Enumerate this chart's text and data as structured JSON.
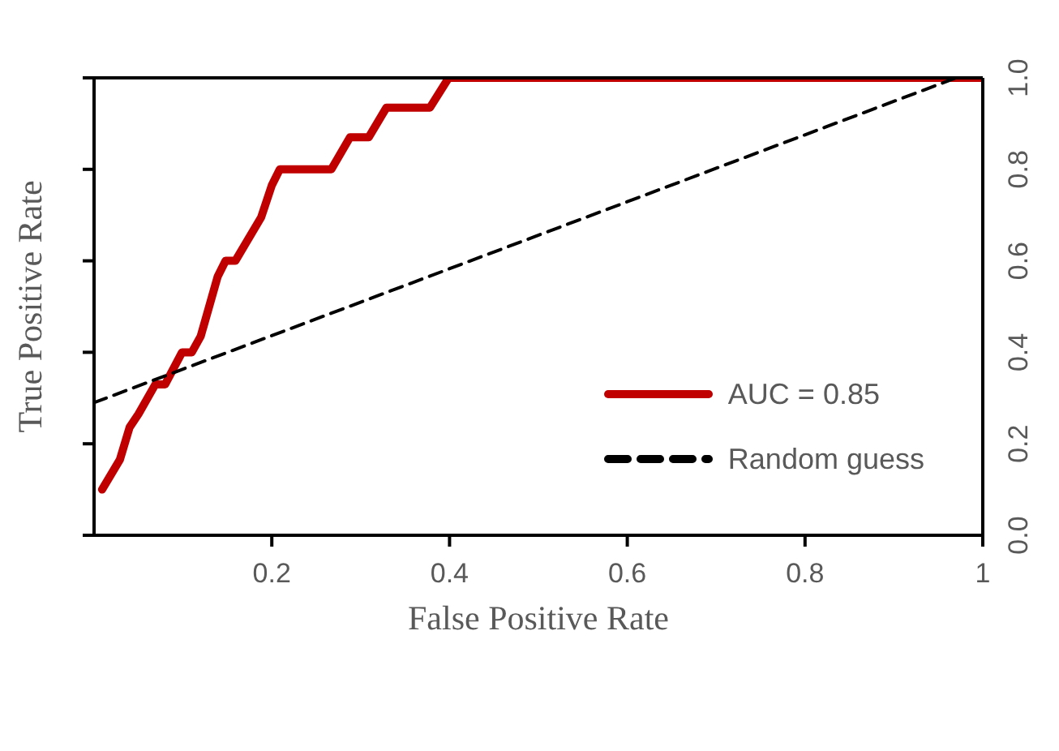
{
  "chart_data": {
    "type": "line",
    "xlabel": "False Positive Rate",
    "ylabel": "True Positive Rate",
    "xlim": [
      0,
      1
    ],
    "xticks": [
      {
        "value": 0.2,
        "label": "0.2"
      },
      {
        "value": 0.4,
        "label": "0.4"
      },
      {
        "value": 0.6,
        "label": "0.6"
      },
      {
        "value": 0.8,
        "label": "0.8"
      },
      {
        "value": 1,
        "label": "1"
      }
    ],
    "ylim": [
      0,
      1
    ],
    "yticks": [
      {
        "value": 0,
        "label": "0.0"
      },
      {
        "value": 0.2,
        "label": "0.2"
      },
      {
        "value": 0.4,
        "label": "0.4"
      },
      {
        "value": 0.6,
        "label": "0.6"
      },
      {
        "value": 0.8,
        "label": "0.8"
      },
      {
        "value": 1,
        "label": "1.0"
      }
    ],
    "series": [
      {
        "name": "AUC = 0.85",
        "color": "#c00000",
        "line_style": "solid",
        "x": [
          0.009,
          0.029,
          0.04,
          0.05,
          0.069,
          0.08,
          0.099,
          0.11,
          0.12,
          0.139,
          0.148,
          0.159,
          0.188,
          0.2,
          0.209,
          0.267,
          0.288,
          0.309,
          0.329,
          0.378,
          0.399,
          1
        ],
        "values": [
          0.1,
          0.165,
          0.236,
          0.265,
          0.33,
          0.33,
          0.4,
          0.4,
          0.435,
          0.565,
          0.6,
          0.6,
          0.695,
          0.765,
          0.8,
          0.8,
          0.87,
          0.87,
          0.935,
          0.935,
          1,
          1
        ]
      },
      {
        "name": "Random guess",
        "color": "#000000",
        "line_style": "dashed",
        "x": [
          0,
          0.97
        ],
        "values": [
          0.29,
          1
        ]
      }
    ],
    "legend": "bottom right",
    "marker": "none"
  }
}
